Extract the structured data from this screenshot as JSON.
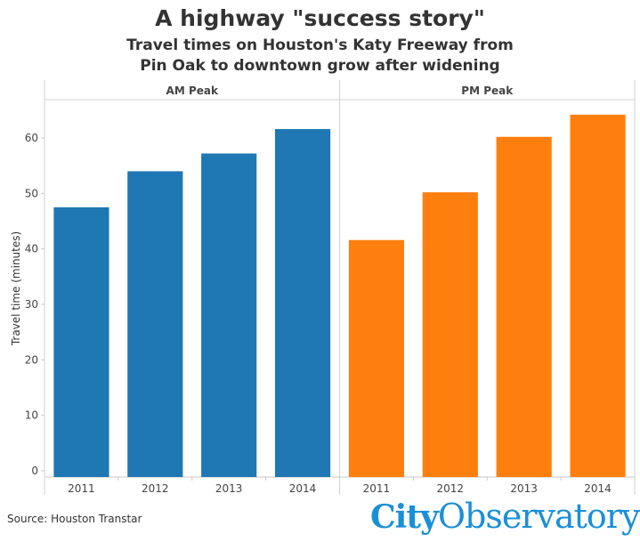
{
  "header": {
    "title": "A highway \"success story\"",
    "subtitle_line1": "Travel times on Houston's Katy Freeway from",
    "subtitle_line2": "Pin Oak to downtown grow after widening"
  },
  "footer": {
    "source": "Source: Houston Transtar",
    "logo_city": "City",
    "logo_observatory": "Observatory"
  },
  "colors": {
    "am": "#1f77b4",
    "pm": "#ff7f0e",
    "logo": "#1a8fd8"
  },
  "chart_data": {
    "type": "bar",
    "ylabel": "Travel time (minutes)",
    "ylim": [
      0,
      65
    ],
    "yticks": [
      0,
      10,
      20,
      30,
      40,
      50,
      60
    ],
    "grid": false,
    "panels": [
      {
        "name": "AM Peak",
        "categories": [
          "2011",
          "2012",
          "2013",
          "2014"
        ],
        "values": [
          47.5,
          54,
          57.2,
          61.6
        ],
        "color": "#1f77b4"
      },
      {
        "name": "PM Peak",
        "categories": [
          "2011",
          "2012",
          "2013",
          "2014"
        ],
        "values": [
          41.6,
          50.2,
          60.2,
          64.2
        ],
        "color": "#ff7f0e"
      }
    ]
  }
}
